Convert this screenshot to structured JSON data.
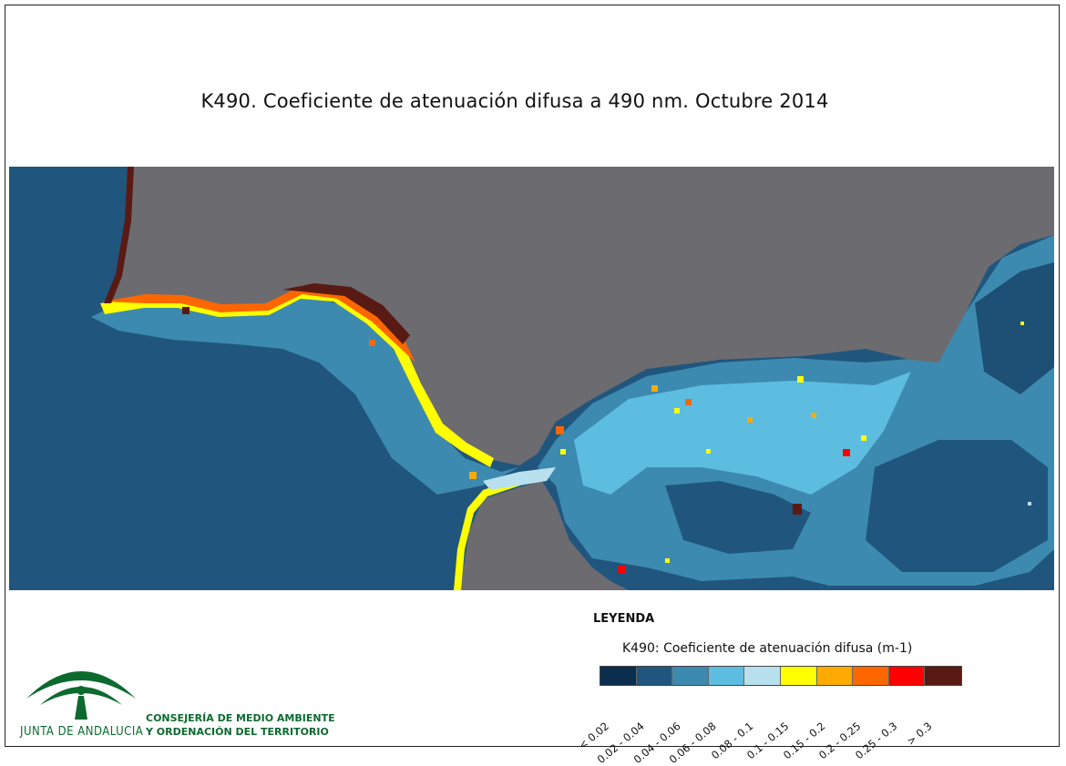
{
  "title": "K490. Coeficiente de atenuación difusa a 490 nm. Octubre 2014",
  "legend": {
    "heading": "LEYENDA",
    "subtitle": "K490: Coeficiente de atenuación difusa (m-1)",
    "classes": [
      {
        "label": "< 0.02",
        "color": "#0b2d4e"
      },
      {
        "label": "0.02 - 0.04",
        "color": "#20567d"
      },
      {
        "label": "0.04 - 0.06",
        "color": "#3d8ab0"
      },
      {
        "label": "0.06 - 0.08",
        "color": "#5cbde0"
      },
      {
        "label": "0.08 - 0.1",
        "color": "#b8e0ef"
      },
      {
        "label": "0.1 - 0.15",
        "color": "#ffff00"
      },
      {
        "label": "0.15 - 0.2",
        "color": "#ffaa00"
      },
      {
        "label": "0.2 - 0.25",
        "color": "#ff6600"
      },
      {
        "label": "0.25 - 0.3",
        "color": "#ff0000"
      },
      {
        "label": "> 0.3",
        "color": "#5a1a14"
      }
    ]
  },
  "map": {
    "land_color": "#6b6b70",
    "ocean_color": "#20567d"
  },
  "organization": {
    "name": "JUNTA DE ANDALUCIA",
    "department_line1": "CONSEJERÍA DE MEDIO AMBIENTE",
    "department_line2": "Y ORDENACIÓN DEL TERRITORIO",
    "brand_color": "#0c6a2f"
  }
}
